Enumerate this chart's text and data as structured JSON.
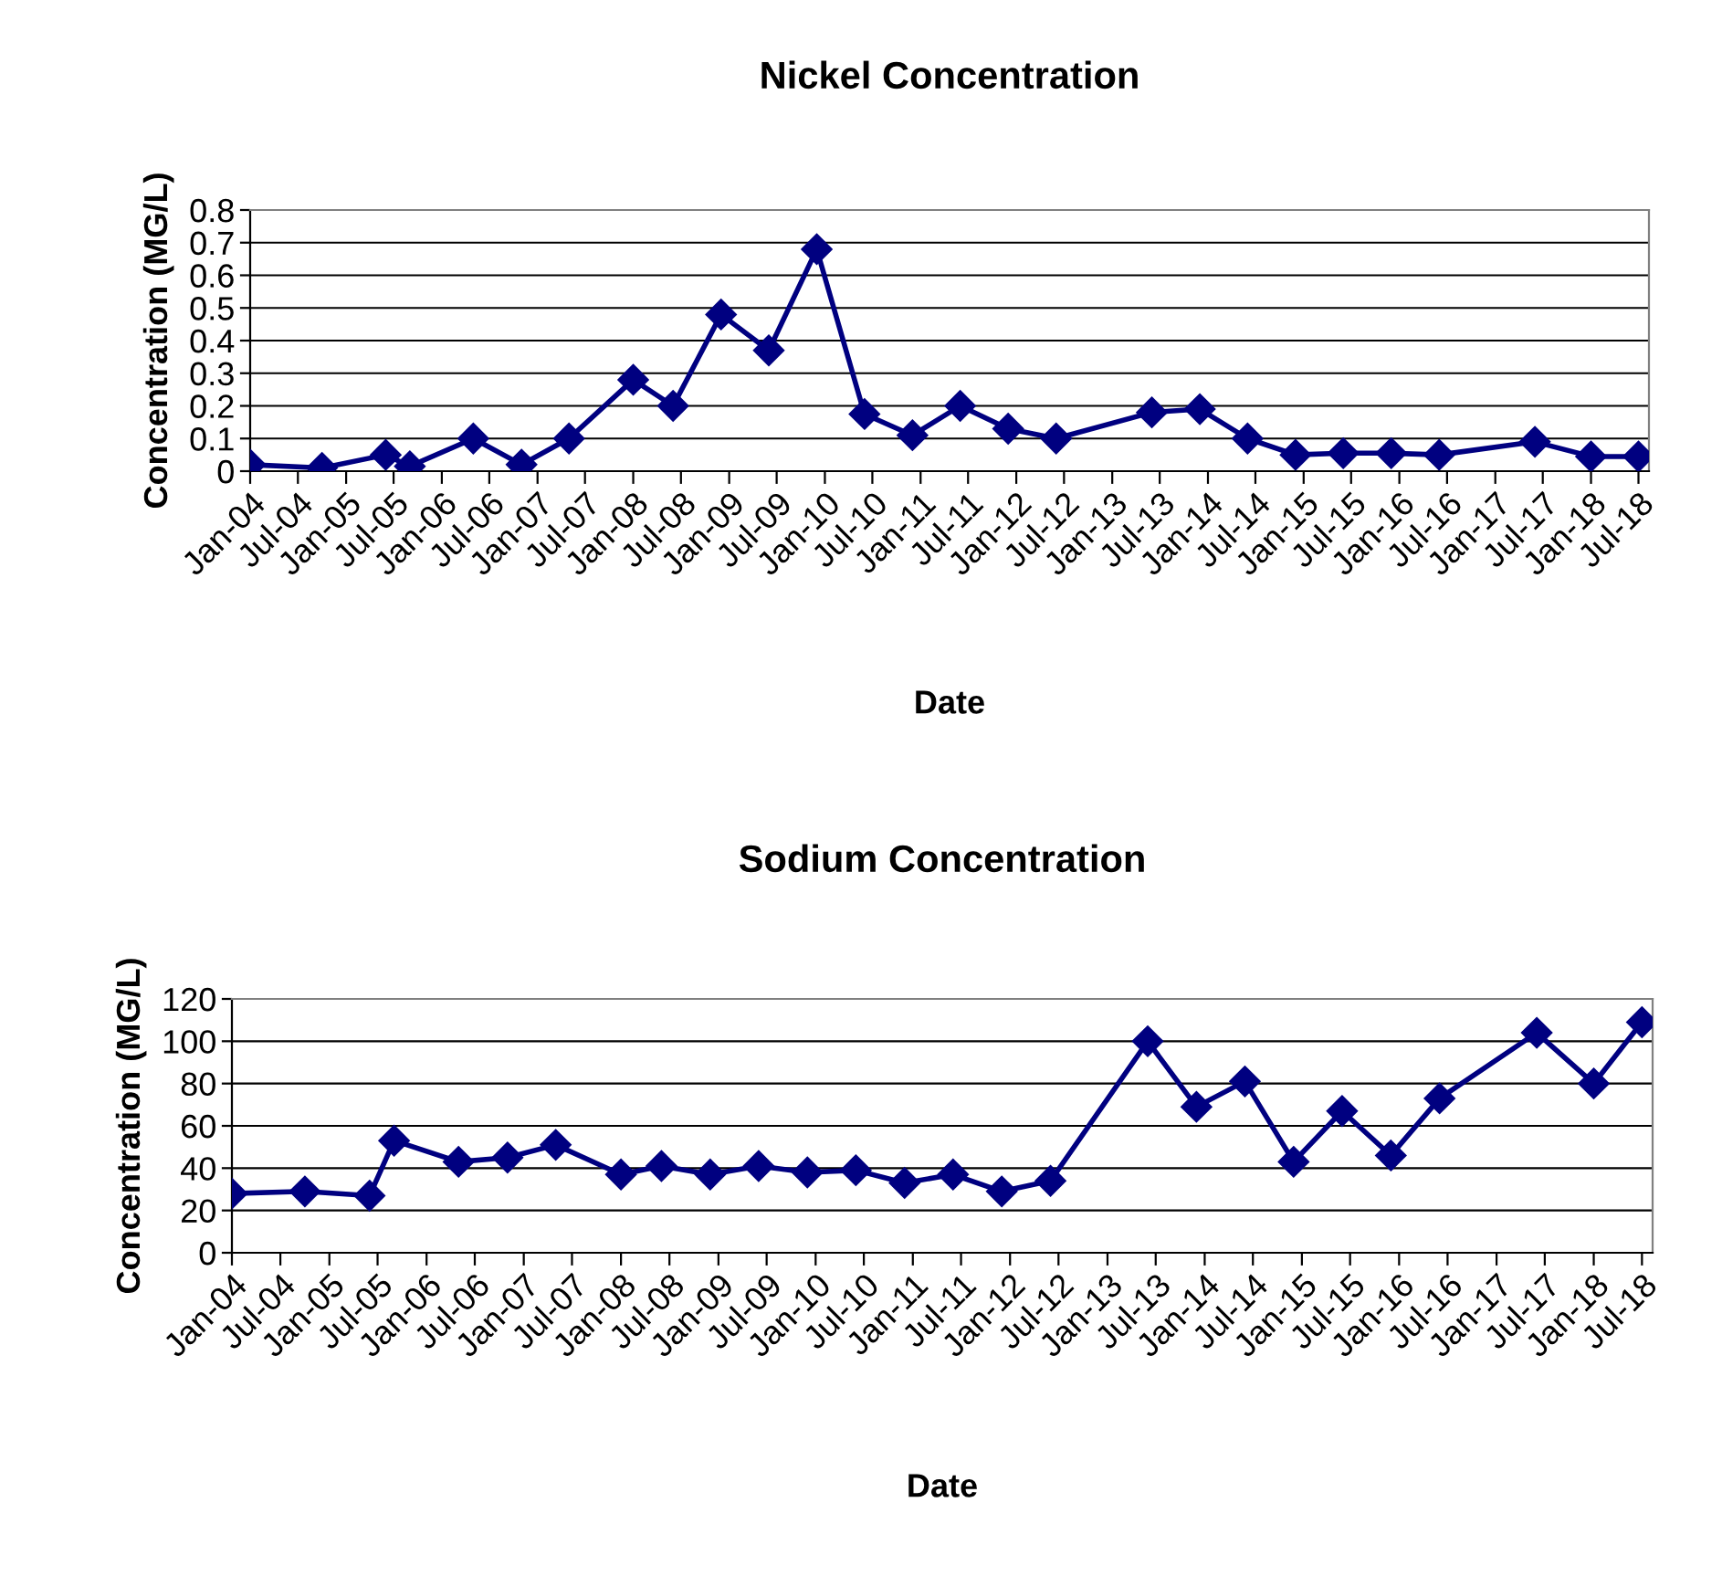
{
  "chart_data": [
    {
      "type": "line",
      "title": "Nickel Concentration",
      "xlabel": "Date",
      "ylabel": "Concentration (MG/L)",
      "x": [
        "2004-01",
        "2004-10",
        "2005-06",
        "2005-09",
        "2006-05",
        "2006-11",
        "2007-05",
        "2008-01",
        "2008-06",
        "2008-12",
        "2009-06",
        "2009-12",
        "2010-06",
        "2010-12",
        "2011-06",
        "2011-12",
        "2012-06",
        "2013-06",
        "2013-12",
        "2014-06",
        "2014-12",
        "2015-06",
        "2015-12",
        "2016-06",
        "2017-06",
        "2018-01",
        "2018-07"
      ],
      "series": [
        {
          "color": "#000080",
          "values": [
            0.02,
            0.01,
            0.05,
            0.015,
            0.1,
            0.02,
            0.1,
            0.28,
            0.2,
            0.48,
            0.37,
            0.68,
            0.175,
            0.11,
            0.2,
            0.13,
            0.1,
            0.18,
            0.19,
            0.1,
            0.05,
            0.055,
            0.055,
            0.05,
            0.09,
            0.045,
            0.045
          ]
        }
      ],
      "xlim": [
        "2004-01",
        "2018-08-10"
      ],
      "xticks": [
        {
          "value": "2004-01",
          "label": "Jan-04"
        },
        {
          "value": "2004-07",
          "label": "Jul-04"
        },
        {
          "value": "2005-01",
          "label": "Jan-05"
        },
        {
          "value": "2005-07",
          "label": "Jul-05"
        },
        {
          "value": "2006-01",
          "label": "Jan-06"
        },
        {
          "value": "2006-07",
          "label": "Jul-06"
        },
        {
          "value": "2007-01",
          "label": "Jan-07"
        },
        {
          "value": "2007-07",
          "label": "Jul-07"
        },
        {
          "value": "2008-01",
          "label": "Jan-08"
        },
        {
          "value": "2008-07",
          "label": "Jul-08"
        },
        {
          "value": "2009-01",
          "label": "Jan-09"
        },
        {
          "value": "2009-07",
          "label": "Jul-09"
        },
        {
          "value": "2010-01",
          "label": "Jan-10"
        },
        {
          "value": "2010-07",
          "label": "Jul-10"
        },
        {
          "value": "2011-01",
          "label": "Jan-11"
        },
        {
          "value": "2011-07",
          "label": "Jul-11"
        },
        {
          "value": "2012-01",
          "label": "Jan-12"
        },
        {
          "value": "2012-07",
          "label": "Jul-12"
        },
        {
          "value": "2013-01",
          "label": "Jan-13"
        },
        {
          "value": "2013-07",
          "label": "Jul-13"
        },
        {
          "value": "2014-01",
          "label": "Jan-14"
        },
        {
          "value": "2014-07",
          "label": "Jul-14"
        },
        {
          "value": "2015-01",
          "label": "Jan-15"
        },
        {
          "value": "2015-07",
          "label": "Jul-15"
        },
        {
          "value": "2016-01",
          "label": "Jan-16"
        },
        {
          "value": "2016-07",
          "label": "Jul-16"
        },
        {
          "value": "2017-01",
          "label": "Jan-17"
        },
        {
          "value": "2017-07",
          "label": "Jul-17"
        },
        {
          "value": "2018-01",
          "label": "Jan-18"
        },
        {
          "value": "2018-07",
          "label": "Jul-18"
        }
      ],
      "ylim": [
        0,
        0.8
      ],
      "yticks": [
        0,
        0.1,
        0.2,
        0.3,
        0.4,
        0.5,
        0.6,
        0.7,
        0.8
      ],
      "grid": "y",
      "marker": "diamond",
      "line_style": "solid",
      "legend": false
    },
    {
      "type": "line",
      "title": "Sodium Concentration",
      "xlabel": "Date",
      "ylabel": "Concentration (MG/L)",
      "x": [
        "2004-01",
        "2004-10",
        "2005-06",
        "2005-09",
        "2006-05",
        "2006-11",
        "2007-05",
        "2008-01",
        "2008-06",
        "2008-12",
        "2009-06",
        "2009-12",
        "2010-06",
        "2010-12",
        "2011-06",
        "2011-12",
        "2012-06",
        "2013-06",
        "2013-12",
        "2014-06",
        "2014-12",
        "2015-06",
        "2015-12",
        "2016-06",
        "2017-06",
        "2018-01",
        "2018-07"
      ],
      "series": [
        {
          "color": "#000080",
          "values": [
            28,
            29,
            27,
            53,
            43,
            45,
            51,
            37,
            41,
            37,
            41,
            38,
            39,
            33,
            37,
            29,
            34,
            100,
            69,
            81,
            43,
            67,
            46,
            73,
            104,
            80,
            109
          ]
        }
      ],
      "xlim": [
        "2004-01",
        "2018-08-10"
      ],
      "xticks": [
        {
          "value": "2004-01",
          "label": "Jan-04"
        },
        {
          "value": "2004-07",
          "label": "Jul-04"
        },
        {
          "value": "2005-01",
          "label": "Jan-05"
        },
        {
          "value": "2005-07",
          "label": "Jul-05"
        },
        {
          "value": "2006-01",
          "label": "Jan-06"
        },
        {
          "value": "2006-07",
          "label": "Jul-06"
        },
        {
          "value": "2007-01",
          "label": "Jan-07"
        },
        {
          "value": "2007-07",
          "label": "Jul-07"
        },
        {
          "value": "2008-01",
          "label": "Jan-08"
        },
        {
          "value": "2008-07",
          "label": "Jul-08"
        },
        {
          "value": "2009-01",
          "label": "Jan-09"
        },
        {
          "value": "2009-07",
          "label": "Jul-09"
        },
        {
          "value": "2010-01",
          "label": "Jan-10"
        },
        {
          "value": "2010-07",
          "label": "Jul-10"
        },
        {
          "value": "2011-01",
          "label": "Jan-11"
        },
        {
          "value": "2011-07",
          "label": "Jul-11"
        },
        {
          "value": "2012-01",
          "label": "Jan-12"
        },
        {
          "value": "2012-07",
          "label": "Jul-12"
        },
        {
          "value": "2013-01",
          "label": "Jan-13"
        },
        {
          "value": "2013-07",
          "label": "Jul-13"
        },
        {
          "value": "2014-01",
          "label": "Jan-14"
        },
        {
          "value": "2014-07",
          "label": "Jul-14"
        },
        {
          "value": "2015-01",
          "label": "Jan-15"
        },
        {
          "value": "2015-07",
          "label": "Jul-15"
        },
        {
          "value": "2016-01",
          "label": "Jan-16"
        },
        {
          "value": "2016-07",
          "label": "Jul-16"
        },
        {
          "value": "2017-01",
          "label": "Jan-17"
        },
        {
          "value": "2017-07",
          "label": "Jul-17"
        },
        {
          "value": "2018-01",
          "label": "Jan-18"
        },
        {
          "value": "2018-07",
          "label": "Jul-18"
        }
      ],
      "ylim": [
        0,
        120
      ],
      "yticks": [
        0,
        20,
        40,
        60,
        80,
        100,
        120
      ],
      "grid": "y",
      "marker": "diamond",
      "line_style": "solid",
      "legend": false
    }
  ]
}
